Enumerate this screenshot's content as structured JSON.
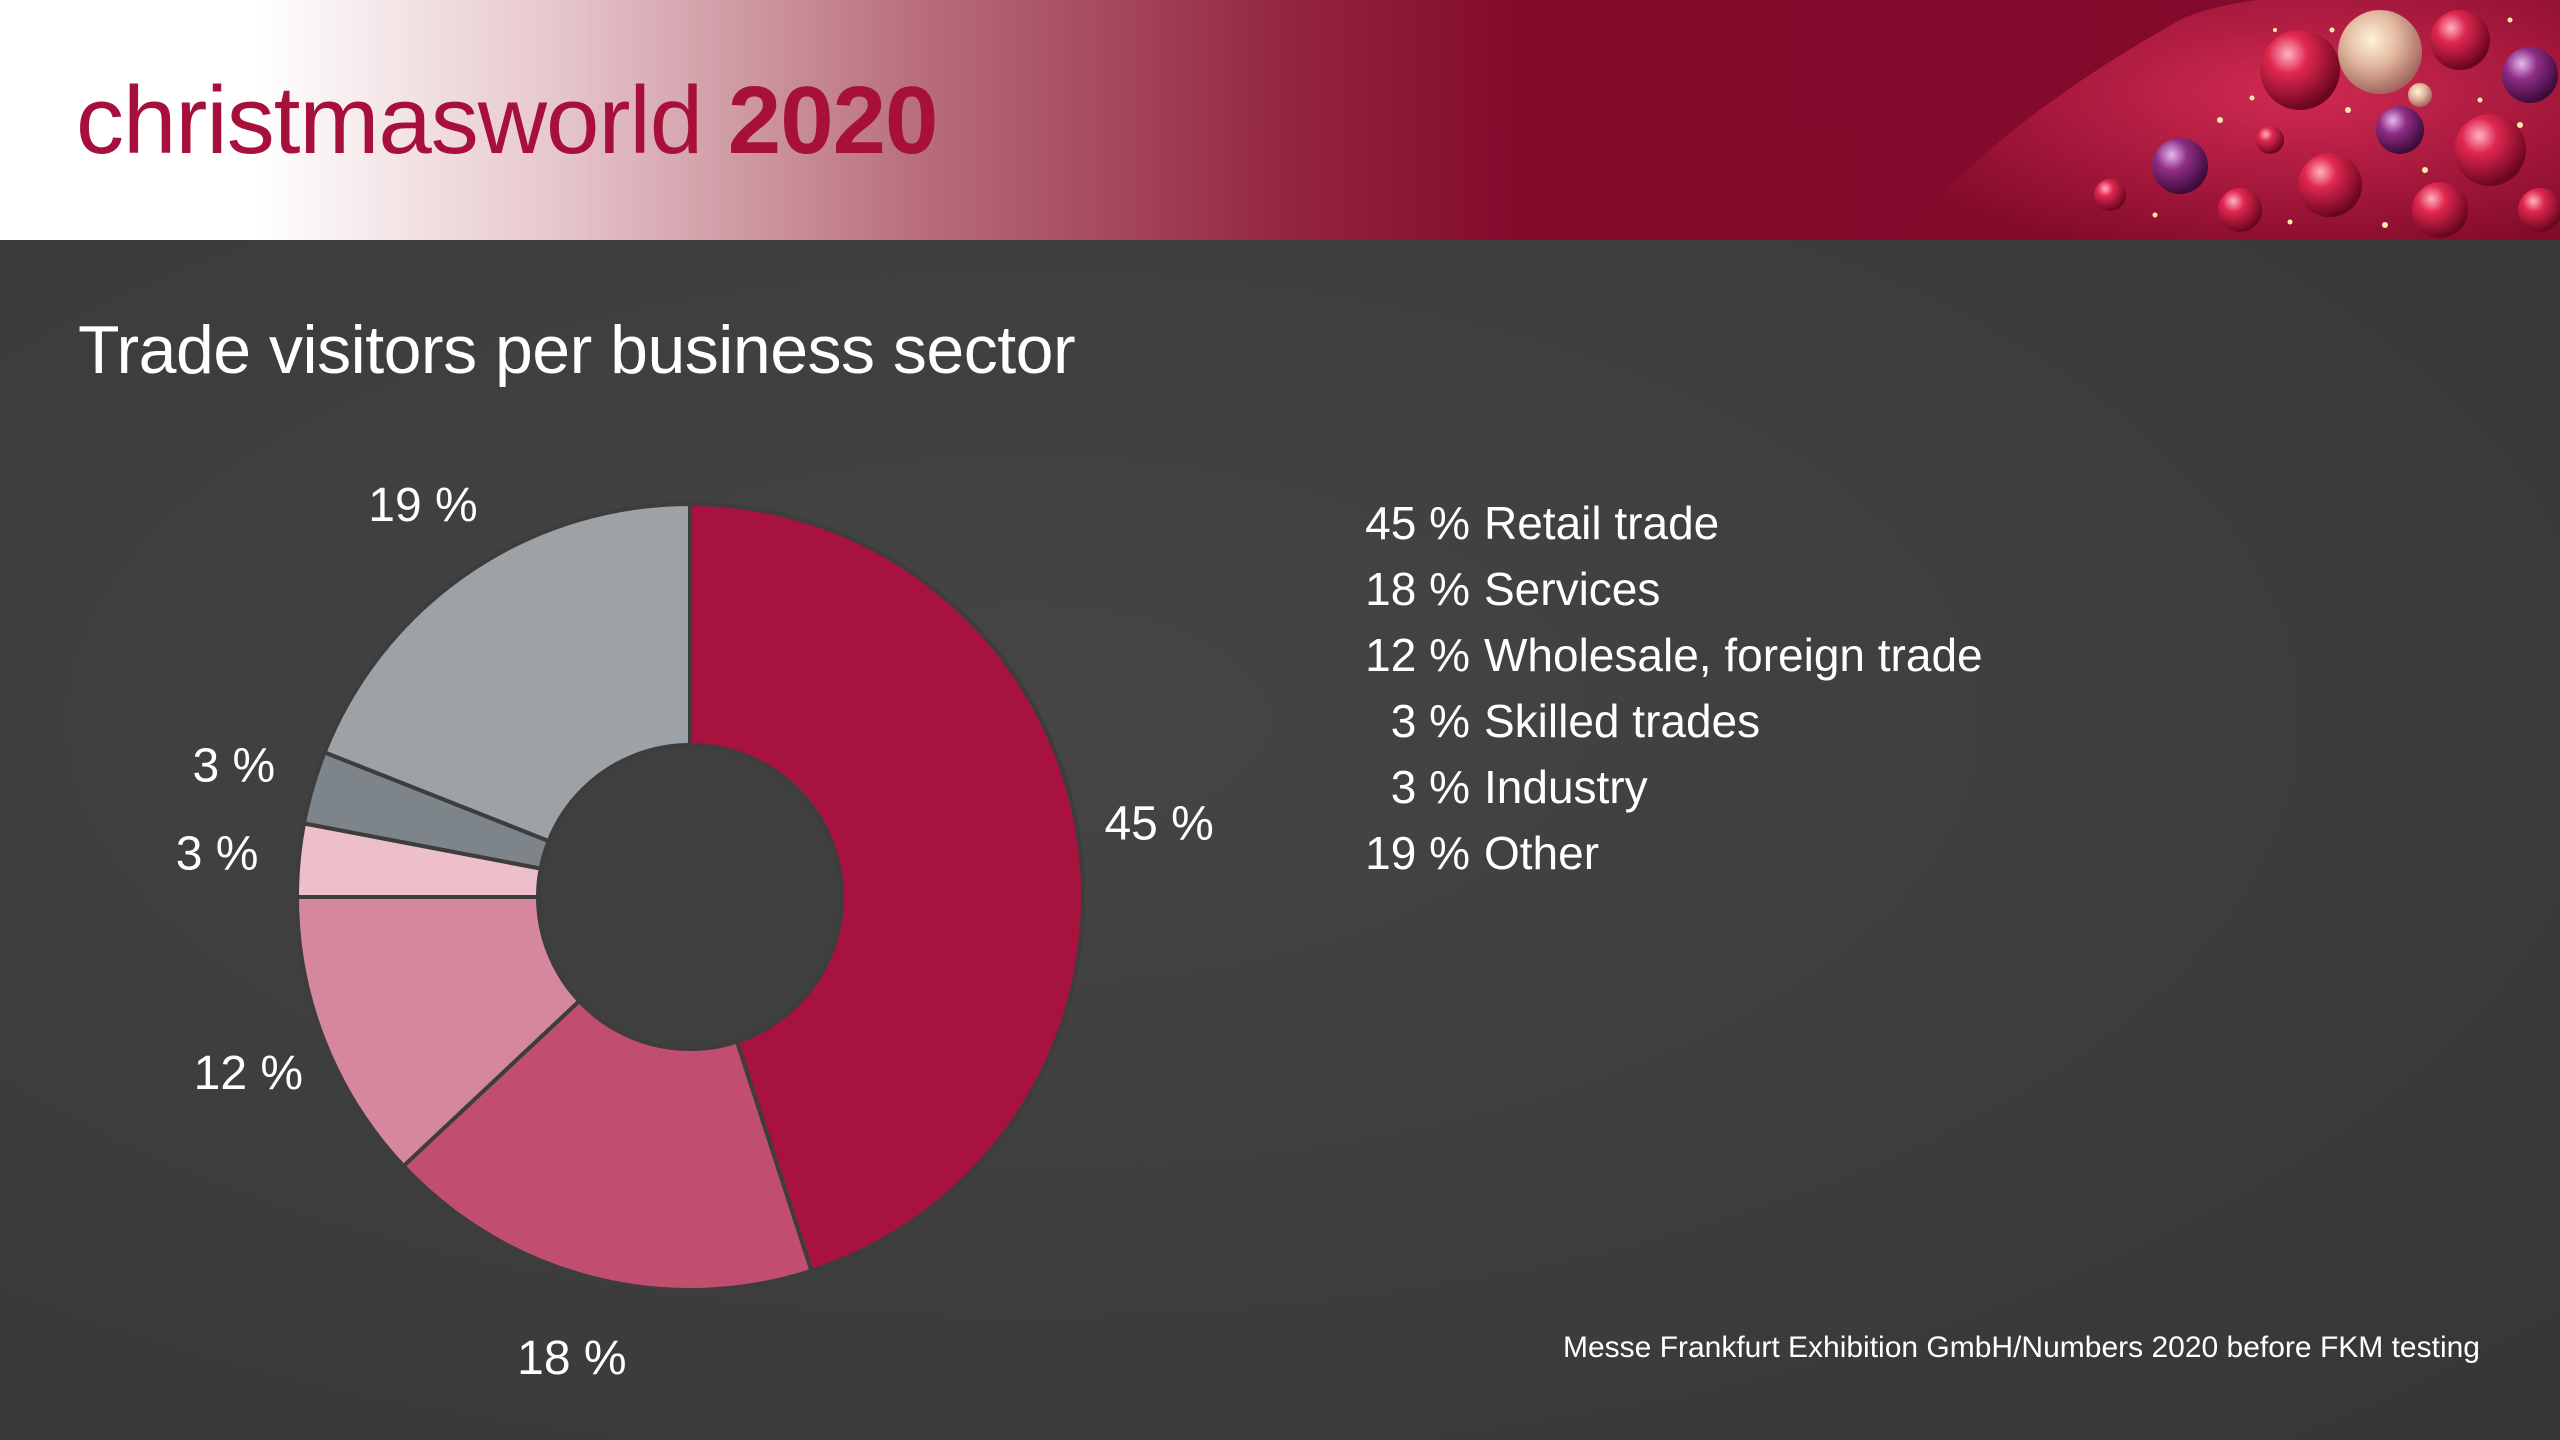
{
  "header": {
    "brand": "christmasworld",
    "year": "2020"
  },
  "colors": {
    "brand": "#a8103c",
    "header_right": "#820a2b",
    "background": "#3d3d3d"
  },
  "chart_data": {
    "type": "pie",
    "style": "donut",
    "title": "Trade visitors per business sector",
    "unit": "%",
    "categories": [
      "Retail trade",
      "Services",
      "Wholesale, foreign trade",
      "Skilled trades",
      "Industry",
      "Other"
    ],
    "values": [
      45,
      18,
      12,
      3,
      3,
      19
    ],
    "slice_labels": [
      "45 %",
      "18 %",
      "12 %",
      "3 %",
      "3 %",
      "19 %"
    ],
    "colors": [
      "#a8123f",
      "#c14e6f",
      "#d5879d",
      "#ecbfca",
      "#7d848a",
      "#9da2a6"
    ],
    "legend": {
      "placement": "right",
      "items": [
        {
          "pct": "45 %",
          "label": "Retail trade"
        },
        {
          "pct": "18 %",
          "label": "Services"
        },
        {
          "pct": "12 %",
          "label": "Wholesale, foreign trade"
        },
        {
          "pct": "3 %",
          "label": "Skilled trades"
        },
        {
          "pct": "3 %",
          "label": "Industry"
        },
        {
          "pct": "19 %",
          "label": "Other"
        }
      ]
    },
    "source": "Messe Frankfurt Exhibition GmbH/Numbers 2020 before FKM testing"
  }
}
